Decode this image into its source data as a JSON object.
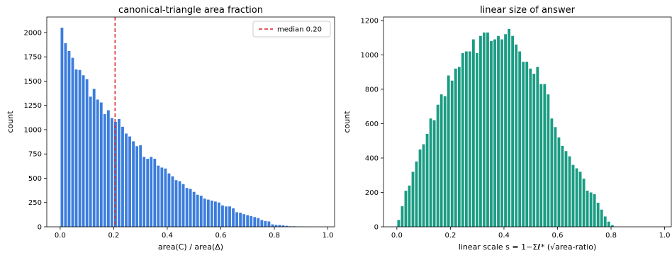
{
  "chart_data": [
    {
      "type": "bar",
      "title": "canonical-triangle area fraction",
      "xlabel": "area(C) / area(Δ)",
      "ylabel": "count",
      "xlim": [
        -0.05,
        1.025
      ],
      "ylim": [
        0,
        2160
      ],
      "xticks": [
        0.0,
        0.2,
        0.4,
        0.6,
        0.8,
        1.0
      ],
      "xtick_labels": [
        "0.0",
        "0.2",
        "0.4",
        "0.6",
        "0.8",
        "1.0"
      ],
      "yticks": [
        0,
        250,
        500,
        750,
        1000,
        1250,
        1500,
        1750,
        2000
      ],
      "ytick_labels": [
        "0",
        "250",
        "500",
        "750",
        "1000",
        "1250",
        "1500",
        "1750",
        "2000"
      ],
      "bin_start": 0.0,
      "bin_width": 0.01333,
      "values": [
        2050,
        1890,
        1810,
        1740,
        1620,
        1615,
        1560,
        1520,
        1340,
        1420,
        1310,
        1280,
        1160,
        1200,
        1120,
        1080,
        1110,
        1030,
        960,
        930,
        880,
        830,
        840,
        720,
        700,
        720,
        700,
        630,
        610,
        600,
        550,
        520,
        480,
        470,
        440,
        400,
        390,
        360,
        330,
        320,
        290,
        280,
        270,
        260,
        250,
        220,
        210,
        210,
        190,
        150,
        145,
        130,
        120,
        110,
        100,
        90,
        70,
        60,
        55,
        25,
        20,
        20,
        15,
        10,
        5,
        5,
        3,
        2,
        1,
        1,
        0,
        0,
        0
      ],
      "color": "#3b7ddd",
      "median_line": {
        "x": 0.205,
        "label": "median 0.20",
        "color": "#d62728"
      },
      "legend_position": "upper right",
      "grid": false
    },
    {
      "type": "bar",
      "title": "linear size of answer",
      "xlabel": "linear scale  s = 1−Σℓ*  (√area-ratio)",
      "ylabel": "count",
      "xlim": [
        -0.05,
        1.025
      ],
      "ylim": [
        0,
        1220
      ],
      "xticks": [
        0.0,
        0.2,
        0.4,
        0.6,
        0.8,
        1.0
      ],
      "xtick_labels": [
        "0.0",
        "0.2",
        "0.4",
        "0.6",
        "0.8",
        "1.0"
      ],
      "yticks": [
        0,
        200,
        400,
        600,
        800,
        1000,
        1200
      ],
      "ytick_labels": [
        "0",
        "200",
        "400",
        "600",
        "800",
        "1000",
        "1200"
      ],
      "bin_start": 0.0,
      "bin_width": 0.0133,
      "values": [
        40,
        120,
        210,
        240,
        320,
        380,
        450,
        480,
        540,
        630,
        620,
        710,
        770,
        760,
        880,
        850,
        920,
        930,
        1010,
        1020,
        1020,
        1090,
        1010,
        1110,
        1130,
        1130,
        1080,
        1090,
        1110,
        1090,
        1120,
        1150,
        1110,
        1060,
        1020,
        960,
        960,
        920,
        890,
        930,
        830,
        830,
        770,
        630,
        580,
        520,
        470,
        440,
        410,
        360,
        340,
        320,
        280,
        210,
        200,
        190,
        140,
        100,
        60,
        30,
        10
      ],
      "color": "#1a9c83",
      "grid": false
    }
  ]
}
